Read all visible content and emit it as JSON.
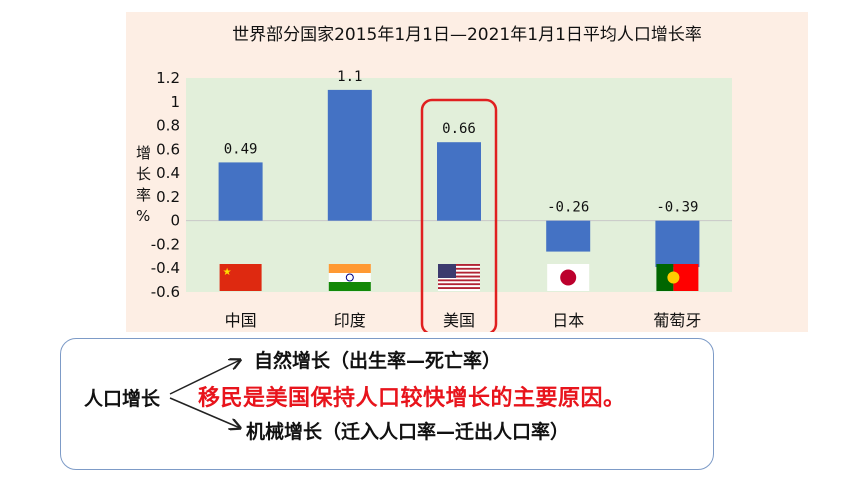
{
  "chart_data": {
    "type": "bar",
    "title": "世界部分国家2015年1月1日—2021年1月1日平均人口增长率",
    "ylabel": "增长率%",
    "ylabel_chars": [
      "增",
      "长",
      "率",
      "%"
    ],
    "categories": [
      "中国",
      "印度",
      "美国",
      "日本",
      "葡萄牙"
    ],
    "values": [
      0.49,
      1.1,
      0.66,
      -0.26,
      -0.39
    ],
    "value_labels": [
      "0.49",
      "1.1",
      "0.66",
      "-0.26",
      "-0.39"
    ],
    "ylim": [
      -0.6,
      1.2
    ],
    "yticks": [
      "1.2",
      "1",
      "0.8",
      "0.6",
      "0.4",
      "0.2",
      "0",
      "-0.2",
      "-0.4",
      "-0.6"
    ],
    "ytick_values": [
      1.2,
      1,
      0.8,
      0.6,
      0.4,
      0.2,
      0,
      -0.2,
      -0.4,
      -0.6
    ],
    "highlighted_category": "美国",
    "flags": [
      "china-flag",
      "india-flag",
      "usa-flag",
      "japan-flag",
      "portugal-flag"
    ],
    "colors": {
      "bar": "#4472c4",
      "plot_bg": "#e2efda",
      "panel_bg": "#fdeee4",
      "highlight": "#e02020"
    }
  },
  "notes": {
    "root": "人口增长",
    "branch_natural": "自然增长（出生率—死亡率）",
    "branch_mechanical": "机械增长（迁入人口率—迁出人口率）",
    "conclusion": "移民是美国保持人口较快增长的主要原因。"
  }
}
